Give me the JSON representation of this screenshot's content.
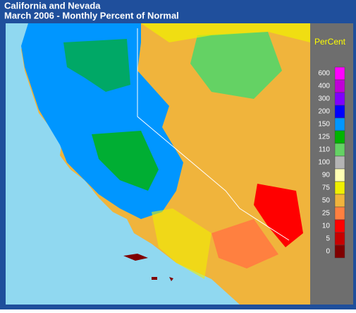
{
  "header": {
    "title": "California and Nevada",
    "subtitle": "March 2006 - Monthly Percent of Normal"
  },
  "legend": {
    "title": "PerCent",
    "entries": [
      {
        "value": 600,
        "color": "#ff00ff"
      },
      {
        "value": 400,
        "color": "#c000d8"
      },
      {
        "value": 300,
        "color": "#8000ff"
      },
      {
        "value": 200,
        "color": "#0000ff"
      },
      {
        "value": 150,
        "color": "#0096ff"
      },
      {
        "value": 125,
        "color": "#00b400"
      },
      {
        "value": 110,
        "color": "#64d264"
      },
      {
        "value": 100,
        "color": "#b4b4b4"
      },
      {
        "value": 90,
        "color": "#ffffb4"
      },
      {
        "value": 75,
        "color": "#f0f000"
      },
      {
        "value": 50,
        "color": "#f0b43c"
      },
      {
        "value": 25,
        "color": "#ff8040"
      },
      {
        "value": 10,
        "color": "#ff0000"
      },
      {
        "value": 5,
        "color": "#c80000"
      },
      {
        "value": 0,
        "color": "#800000"
      }
    ]
  }
}
